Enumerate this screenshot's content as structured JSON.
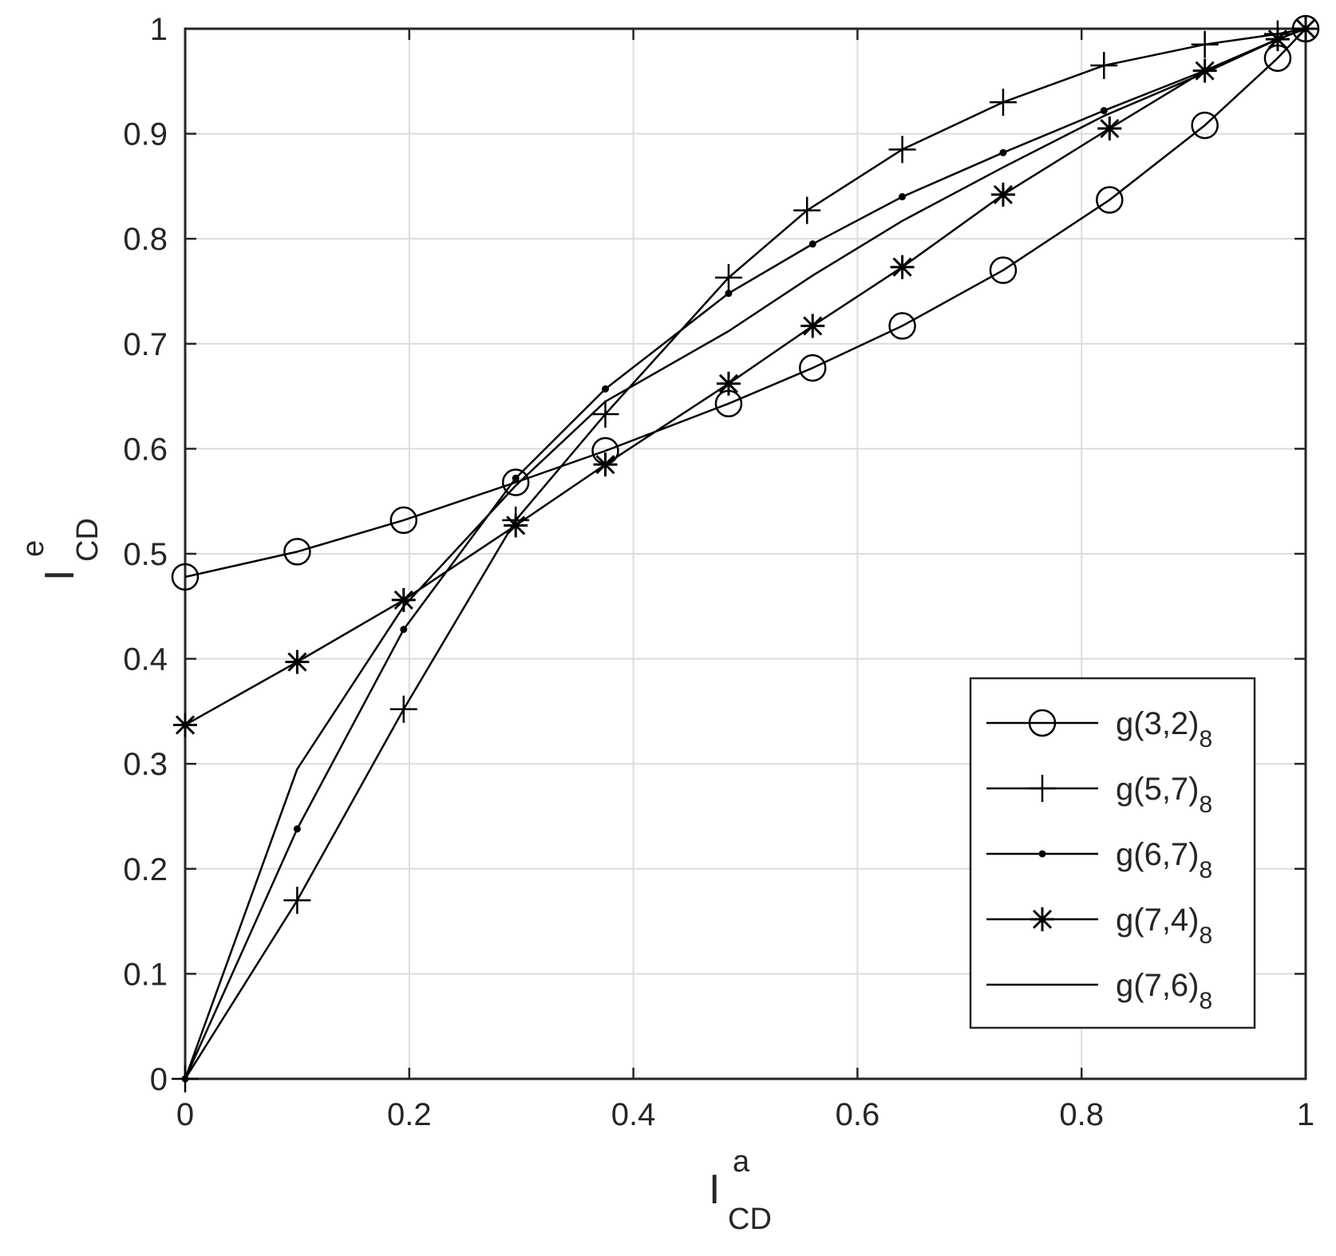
{
  "chart_data": {
    "type": "line",
    "xlabel": {
      "base": "I",
      "sup": "a",
      "sub": "CD"
    },
    "ylabel": {
      "base": "I",
      "sup": "e",
      "sub": "CD"
    },
    "xlim": [
      0,
      1
    ],
    "ylim": [
      0,
      1
    ],
    "xticks": [
      0,
      0.2,
      0.4,
      0.6,
      0.8,
      1
    ],
    "yticks": [
      0,
      0.1,
      0.2,
      0.3,
      0.4,
      0.5,
      0.6,
      0.7,
      0.8,
      0.9,
      1
    ],
    "xtick_labels": [
      "0",
      "0.2",
      "0.4",
      "0.6",
      "0.8",
      "1"
    ],
    "ytick_labels": [
      "0",
      "0.1",
      "0.2",
      "0.3",
      "0.4",
      "0.5",
      "0.6",
      "0.7",
      "0.8",
      "0.9",
      "1"
    ],
    "grid": true,
    "legend_position": "bottom-right",
    "line_color": "#000000",
    "series": [
      {
        "name": "g(3,2)",
        "name_base": "g(3,2)",
        "name_sub": "8",
        "marker": "circle",
        "x": [
          0,
          0.1,
          0.195,
          0.295,
          0.375,
          0.485,
          0.56,
          0.64,
          0.73,
          0.825,
          0.91,
          0.975,
          1
        ],
        "y": [
          0.478,
          0.502,
          0.532,
          0.568,
          0.598,
          0.643,
          0.677,
          0.717,
          0.77,
          0.837,
          0.908,
          0.972,
          1
        ]
      },
      {
        "name": "g(5,7)",
        "name_base": "g(5,7)",
        "name_sub": "8",
        "marker": "plus",
        "x": [
          0,
          0.1,
          0.195,
          0.295,
          0.375,
          0.485,
          0.555,
          0.64,
          0.73,
          0.82,
          0.91,
          0.975,
          1
        ],
        "y": [
          0,
          0.17,
          0.352,
          0.532,
          0.633,
          0.763,
          0.827,
          0.885,
          0.93,
          0.965,
          0.985,
          0.995,
          1
        ]
      },
      {
        "name": "g(6,7)",
        "name_base": "g(6,7)",
        "name_sub": "8",
        "marker": "dot",
        "x": [
          0,
          0.1,
          0.195,
          0.295,
          0.375,
          0.485,
          0.56,
          0.64,
          0.73,
          0.82,
          0.91,
          0.975,
          1
        ],
        "y": [
          0,
          0.238,
          0.428,
          0.572,
          0.657,
          0.748,
          0.795,
          0.84,
          0.882,
          0.922,
          0.96,
          0.99,
          1
        ]
      },
      {
        "name": "g(7,4)",
        "name_base": "g(7,4)",
        "name_sub": "8",
        "marker": "asterisk",
        "x": [
          0,
          0.1,
          0.195,
          0.295,
          0.375,
          0.485,
          0.56,
          0.64,
          0.73,
          0.825,
          0.91,
          0.975,
          1
        ],
        "y": [
          0.337,
          0.397,
          0.456,
          0.527,
          0.585,
          0.662,
          0.717,
          0.773,
          0.842,
          0.905,
          0.96,
          0.99,
          1
        ]
      },
      {
        "name": "g(7,6)",
        "name_base": "g(7,6)",
        "name_sub": "8",
        "marker": "none",
        "x": [
          0,
          0.1,
          0.195,
          0.295,
          0.375,
          0.485,
          0.56,
          0.64,
          0.73,
          0.82,
          0.91,
          0.975,
          1
        ],
        "y": [
          0,
          0.295,
          0.45,
          0.565,
          0.645,
          0.712,
          0.765,
          0.817,
          0.868,
          0.917,
          0.958,
          0.99,
          1
        ]
      }
    ]
  }
}
